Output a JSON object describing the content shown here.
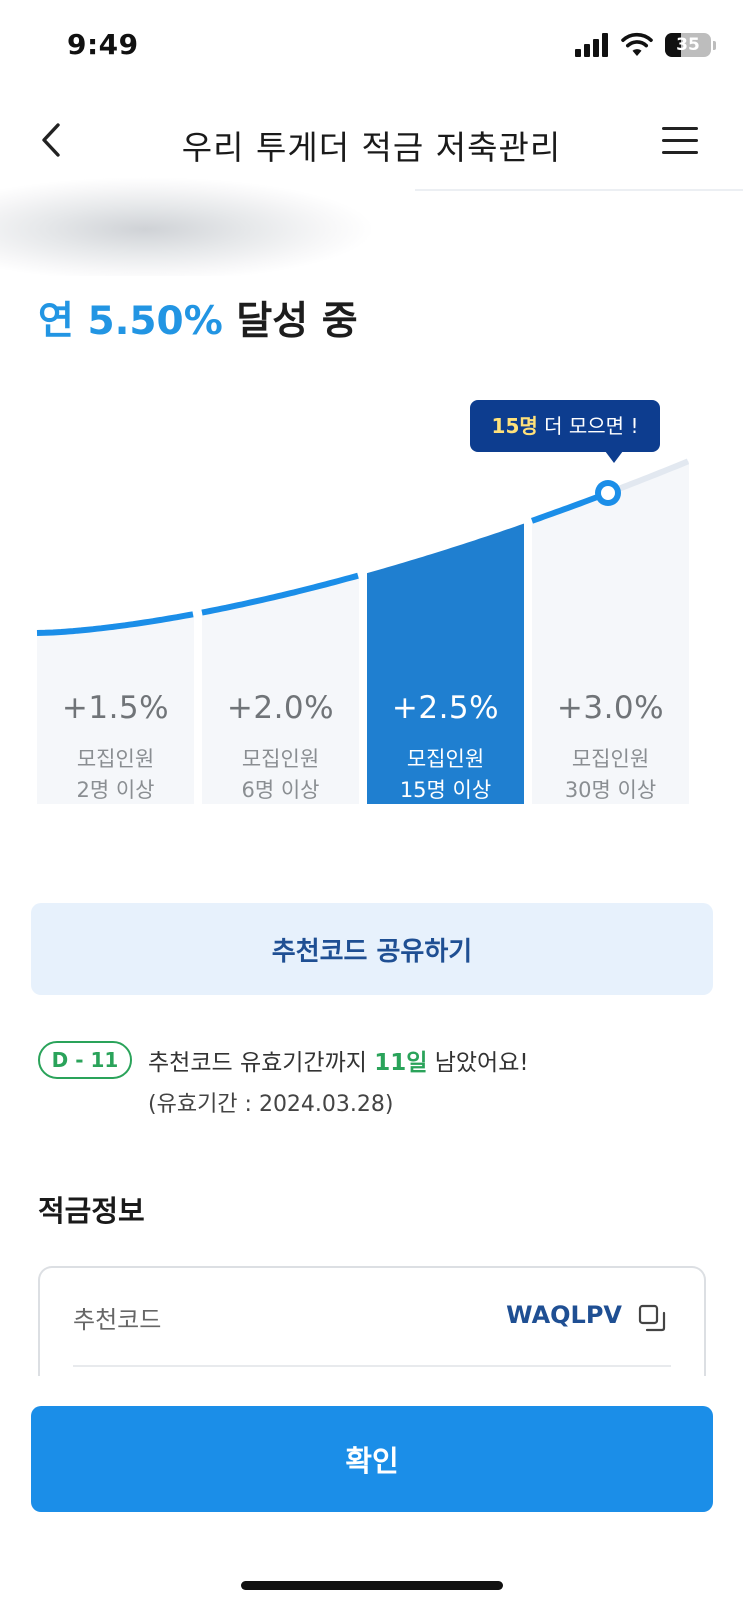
{
  "status_bar": {
    "time": "9:49",
    "battery": "35",
    "battery_level": 0.35,
    "icons": [
      "signal-icon",
      "wifi-icon",
      "battery-icon"
    ]
  },
  "header": {
    "title": "우리 투게더 적금 저축관리",
    "back_icon": "chevron-left-icon",
    "menu_icon": "hamburger-menu-icon"
  },
  "rate_status": {
    "prefix": "연",
    "value": "5.50%",
    "suffix": "달성 중",
    "accent_color": "#2295e3"
  },
  "tooltip": {
    "number": "15명",
    "text": "더 모으면 !"
  },
  "tiers": [
    {
      "rate": "+1.5%",
      "label": "모집인원",
      "count": "2명 이상",
      "active": false,
      "curve_start": 0.0,
      "curve_end": 0.08
    },
    {
      "rate": "+2.0%",
      "label": "모집인원",
      "count": "6명 이상",
      "active": false,
      "curve_start": 0.1,
      "curve_end": 0.28
    },
    {
      "rate": "+2.5%",
      "label": "모집인원",
      "count": "15명 이상",
      "active": true,
      "curve_start": 0.31,
      "curve_end": 0.6
    },
    {
      "rate": "+3.0%",
      "label": "모집인원",
      "count": "30명 이상",
      "active": false,
      "curve_start": 0.64,
      "curve_end": 1.0
    }
  ],
  "colors": {
    "active_tier": "#1f7fd0",
    "inactive_tier": "#f5f7fa",
    "curve": "#1b8ee8",
    "tooltip_bg": "#0d3d8f",
    "success": "#2aa35a"
  },
  "share_button": {
    "label": "추천코드 공유하기"
  },
  "notice": {
    "badge": "D - 11",
    "before": "추천코드 유효기간까지",
    "days": "11일",
    "after": "남았어요!",
    "period": "(유효기간 : 2024.03.28)"
  },
  "savings_info": {
    "section_title": "적금정보",
    "label": "추천코드",
    "code": "WAQLPV",
    "copy_icon": "copy-icon"
  },
  "confirm_button": {
    "label": "확인"
  }
}
